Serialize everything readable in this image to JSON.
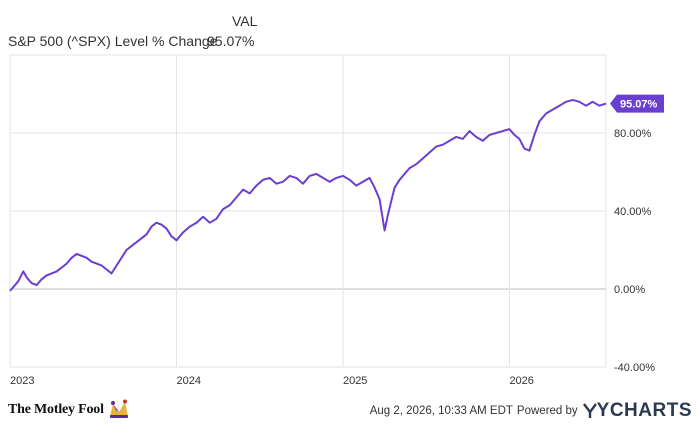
{
  "legend": {
    "header": "VAL",
    "series_name": "S&P 500 (^SPX) Level % Change",
    "series_value": "95.07%"
  },
  "footer": {
    "brand_left": "The Motley Fool",
    "date": "Aug 2, 2026, 10:33 AM EDT",
    "powered": "Powered by",
    "brand_right": "YCHARTS"
  },
  "colors": {
    "line": "#6a3fd0",
    "grid": "#e3e3e3",
    "zero": "#bdbdbd",
    "text": "#333333",
    "ycharts": "#2b3a4e"
  },
  "chart_data": {
    "type": "line",
    "title": "",
    "xlabel": "",
    "ylabel": "",
    "x_ticks": [
      "2023",
      "2024",
      "2025",
      "2026"
    ],
    "y_ticks": [
      "80.00%",
      "40.00%",
      "0.00%",
      "-40.00%"
    ],
    "y_tick_values": [
      80,
      40,
      0,
      -40
    ],
    "ylim": [
      -40,
      120
    ],
    "xlim": [
      2023.0,
      2026.58
    ],
    "grid": true,
    "last_value_label": "95.07%",
    "series": [
      {
        "name": "S&P 500 (^SPX) Level % Change",
        "x": [
          2023.0,
          2023.02,
          2023.05,
          2023.08,
          2023.1,
          2023.13,
          2023.16,
          2023.19,
          2023.22,
          2023.25,
          2023.28,
          2023.31,
          2023.34,
          2023.37,
          2023.4,
          2023.43,
          2023.46,
          2023.49,
          2023.52,
          2023.55,
          2023.58,
          2023.61,
          2023.64,
          2023.67,
          2023.7,
          2023.73,
          2023.76,
          2023.79,
          2023.82,
          2023.85,
          2023.88,
          2023.91,
          2023.94,
          2023.97,
          2024.0,
          2024.04,
          2024.08,
          2024.12,
          2024.16,
          2024.2,
          2024.24,
          2024.28,
          2024.32,
          2024.36,
          2024.4,
          2024.44,
          2024.48,
          2024.52,
          2024.56,
          2024.6,
          2024.64,
          2024.68,
          2024.72,
          2024.76,
          2024.8,
          2024.84,
          2024.88,
          2024.92,
          2024.96,
          2025.0,
          2025.04,
          2025.08,
          2025.12,
          2025.16,
          2025.19,
          2025.22,
          2025.25,
          2025.27,
          2025.29,
          2025.31,
          2025.34,
          2025.37,
          2025.4,
          2025.44,
          2025.48,
          2025.52,
          2025.56,
          2025.6,
          2025.64,
          2025.68,
          2025.72,
          2025.76,
          2025.8,
          2025.84,
          2025.88,
          2025.92,
          2025.96,
          2026.0,
          2026.03,
          2026.06,
          2026.09,
          2026.12,
          2026.15,
          2026.18,
          2026.22,
          2026.26,
          2026.3,
          2026.34,
          2026.38,
          2026.42,
          2026.46,
          2026.5,
          2026.54,
          2026.58
        ],
        "values": [
          -1,
          1,
          4,
          9,
          6,
          3,
          2,
          5,
          7,
          8,
          9,
          11,
          13,
          16,
          18,
          17,
          16,
          14,
          13,
          12,
          10,
          8,
          12,
          16,
          20,
          22,
          24,
          26,
          28,
          32,
          34,
          33,
          31,
          27,
          25,
          29,
          32,
          34,
          37,
          34,
          36,
          41,
          43,
          47,
          51,
          49,
          53,
          56,
          57,
          54,
          55,
          58,
          57,
          54,
          58,
          59,
          57,
          55,
          57,
          58,
          56,
          53,
          55,
          57,
          52,
          46,
          30,
          38,
          45,
          52,
          56,
          59,
          62,
          64,
          67,
          70,
          73,
          74,
          76,
          78,
          77,
          81,
          78,
          76,
          79,
          80,
          81,
          82,
          79,
          77,
          72,
          71,
          79,
          86,
          90,
          92,
          94,
          96,
          97,
          96,
          94,
          96,
          94,
          95.07
        ]
      }
    ]
  }
}
